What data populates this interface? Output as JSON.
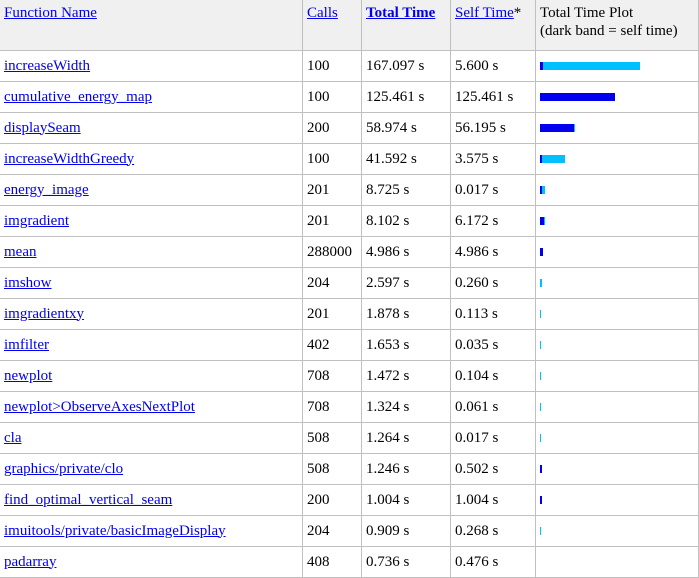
{
  "headers": {
    "function_name": "Function Name",
    "calls": "Calls",
    "total_time": "Total Time",
    "self_time": "Self Time",
    "self_time_suffix": "*",
    "plot_line1": "Total Time Plot",
    "plot_line2": "(dark band = self time)"
  },
  "colors": {
    "self_band": "#0000ee",
    "total_band": "#00c0ff",
    "link": "#0000ee"
  },
  "rows": [
    {
      "name": "increaseWidth",
      "calls": "100",
      "total": "167.097 s",
      "self": "5.600 s",
      "total_s": 167.097,
      "self_s": 5.6
    },
    {
      "name": "cumulative_energy_map",
      "calls": "100",
      "total": "125.461 s",
      "self": "125.461 s",
      "total_s": 125.461,
      "self_s": 125.461
    },
    {
      "name": "displaySeam",
      "calls": "200",
      "total": "58.974 s",
      "self": "56.195 s",
      "total_s": 58.974,
      "self_s": 56.195
    },
    {
      "name": "increaseWidthGreedy",
      "calls": "100",
      "total": "41.592 s",
      "self": "3.575 s",
      "total_s": 41.592,
      "self_s": 3.575
    },
    {
      "name": "energy_image",
      "calls": "201",
      "total": "8.725 s",
      "self": "0.017 s",
      "total_s": 8.725,
      "self_s": 0.017
    },
    {
      "name": "imgradient",
      "calls": "201",
      "total": "8.102 s",
      "self": "6.172 s",
      "total_s": 8.102,
      "self_s": 6.172
    },
    {
      "name": "mean",
      "calls": "288000",
      "total": "4.986 s",
      "self": "4.986 s",
      "total_s": 4.986,
      "self_s": 4.986
    },
    {
      "name": "imshow",
      "calls": "204",
      "total": "2.597 s",
      "self": "0.260 s",
      "total_s": 2.597,
      "self_s": 0.26
    },
    {
      "name": "imgradientxy",
      "calls": "201",
      "total": "1.878 s",
      "self": "0.113 s",
      "total_s": 1.878,
      "self_s": 0.113
    },
    {
      "name": "imfilter",
      "calls": "402",
      "total": "1.653 s",
      "self": "0.035 s",
      "total_s": 1.653,
      "self_s": 0.035
    },
    {
      "name": "newplot",
      "calls": "708",
      "total": "1.472 s",
      "self": "0.104 s",
      "total_s": 1.472,
      "self_s": 0.104
    },
    {
      "name": "newplot>ObserveAxesNextPlot",
      "calls": "708",
      "total": "1.324 s",
      "self": "0.061 s",
      "total_s": 1.324,
      "self_s": 0.061
    },
    {
      "name": "cla",
      "calls": "508",
      "total": "1.264 s",
      "self": "0.017 s",
      "total_s": 1.264,
      "self_s": 0.017
    },
    {
      "name": "graphics/private/clo",
      "calls": "508",
      "total": "1.246 s",
      "self": "0.502 s",
      "total_s": 1.246,
      "self_s": 0.502
    },
    {
      "name": "find_optimal_vertical_seam",
      "calls": "200",
      "total": "1.004 s",
      "self": "1.004 s",
      "total_s": 1.004,
      "self_s": 1.004
    },
    {
      "name": "imuitools/private/basicImageDisplay",
      "calls": "204",
      "total": "0.909 s",
      "self": "0.268 s",
      "total_s": 0.909,
      "self_s": 0.268
    },
    {
      "name": "padarray",
      "calls": "408",
      "total": "0.736 s",
      "self": "0.476 s",
      "total_s": 0.736,
      "self_s": 0.476
    }
  ]
}
